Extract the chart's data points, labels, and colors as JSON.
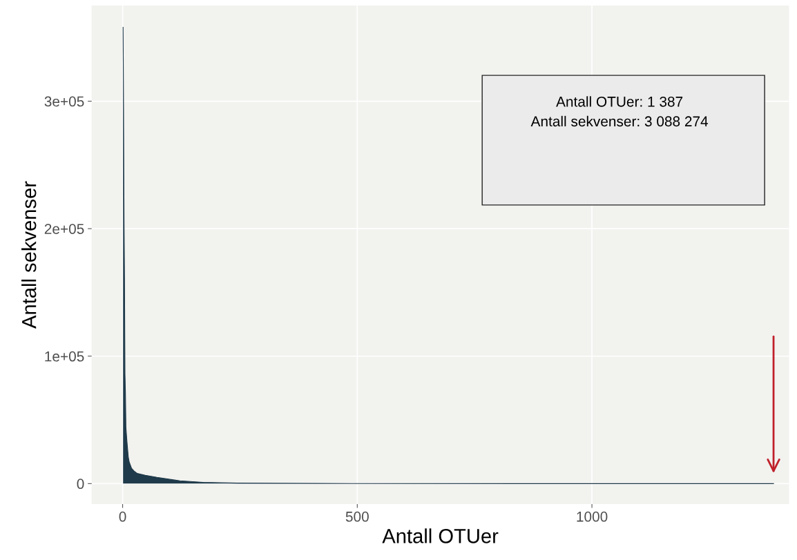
{
  "chart_data": {
    "type": "area",
    "xlabel": "Antall OTUer",
    "ylabel": "Antall sekvenser",
    "annotations": [
      "Antall OTUer: 1 387",
      "Antall sekvenser: 3 088 274"
    ],
    "series": [
      {
        "color": "#1f3a4a",
        "x": [
          1,
          2,
          3,
          4,
          5,
          6,
          7,
          9,
          12,
          14,
          19,
          24,
          31,
          48,
          73,
          122,
          171,
          244,
          416,
          900,
          1387
        ],
        "values": [
          358000,
          295000,
          210000,
          161000,
          86000,
          71000,
          44000,
          34000,
          21000,
          17000,
          12000,
          10000,
          8000,
          6500,
          4900,
          2200,
          1000,
          400,
          100,
          0,
          0
        ]
      }
    ],
    "xlim": [
      -66,
      1420
    ],
    "ylim": [
      -16000,
      375000
    ],
    "xticks": [
      0,
      500,
      1000
    ],
    "yticks": [
      0,
      {
        "value": 100000,
        "label": "1e+05"
      },
      {
        "value": 200000,
        "label": "2e+05"
      },
      {
        "value": 300000,
        "label": "3e+05"
      }
    ],
    "grid": true
  }
}
